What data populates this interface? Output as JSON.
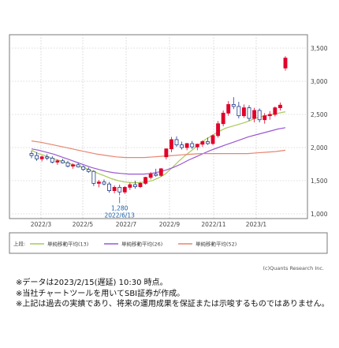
{
  "chart_data": {
    "type": "candlestick",
    "x_ticks": [
      "2022/3",
      "2022/5",
      "2022/7",
      "2022/9",
      "2022/11",
      "2023/1"
    ],
    "y_ticks": [
      "3,500",
      "3,000",
      "2,500",
      "2,000",
      "1,500",
      "1,000"
    ],
    "ylim": [
      1000,
      3500
    ],
    "grid": true,
    "candles": [
      [
        1910,
        1950,
        1840,
        1880
      ],
      [
        1880,
        1930,
        1800,
        1830
      ],
      [
        1830,
        1880,
        1790,
        1860
      ],
      [
        1860,
        1900,
        1810,
        1840
      ],
      [
        1840,
        1870,
        1760,
        1780
      ],
      [
        1780,
        1820,
        1740,
        1800
      ],
      [
        1800,
        1830,
        1760,
        1770
      ],
      [
        1770,
        1800,
        1700,
        1720
      ],
      [
        1720,
        1760,
        1680,
        1740
      ],
      [
        1740,
        1770,
        1700,
        1710
      ],
      [
        1710,
        1730,
        1650,
        1670
      ],
      [
        1670,
        1700,
        1620,
        1640
      ],
      [
        1640,
        1660,
        1420,
        1460
      ],
      [
        1460,
        1510,
        1400,
        1480
      ],
      [
        1480,
        1520,
        1430,
        1450
      ],
      [
        1450,
        1480,
        1320,
        1350
      ],
      [
        1350,
        1430,
        1310,
        1400
      ],
      [
        1400,
        1440,
        1280,
        1330
      ],
      [
        1330,
        1420,
        1300,
        1400
      ],
      [
        1400,
        1470,
        1360,
        1440
      ],
      [
        1440,
        1500,
        1380,
        1410
      ],
      [
        1410,
        1480,
        1390,
        1460
      ],
      [
        1460,
        1560,
        1440,
        1550
      ],
      [
        1550,
        1630,
        1520,
        1600
      ],
      [
        1600,
        1680,
        1560,
        1580
      ],
      [
        1580,
        1690,
        1560,
        1680
      ],
      [
        1860,
        1990,
        1820,
        1980
      ],
      [
        1980,
        2160,
        1930,
        2120
      ],
      [
        2120,
        2170,
        2010,
        2040
      ],
      [
        2040,
        2090,
        1970,
        2000
      ],
      [
        2000,
        2070,
        1960,
        2060
      ],
      [
        2060,
        2100,
        1980,
        2010
      ],
      [
        2010,
        2060,
        1960,
        2050
      ],
      [
        2050,
        2110,
        2010,
        2090
      ],
      [
        2090,
        2150,
        2040,
        2060
      ],
      [
        2060,
        2200,
        2040,
        2180
      ],
      [
        2180,
        2400,
        2150,
        2360
      ],
      [
        2360,
        2560,
        2320,
        2520
      ],
      [
        2520,
        2700,
        2480,
        2650
      ],
      [
        2650,
        2760,
        2580,
        2620
      ],
      [
        2620,
        2690,
        2440,
        2480
      ],
      [
        2480,
        2650,
        2450,
        2600
      ],
      [
        2600,
        2640,
        2400,
        2440
      ],
      [
        2440,
        2600,
        2380,
        2560
      ],
      [
        2560,
        2590,
        2380,
        2420
      ],
      [
        2420,
        2520,
        2360,
        2480
      ],
      [
        2480,
        2550,
        2420,
        2500
      ],
      [
        2500,
        2620,
        2470,
        2600
      ],
      [
        2600,
        2680,
        2560,
        2640
      ],
      [
        3200,
        3380,
        3160,
        3350
      ]
    ],
    "series": [
      {
        "name": "単純移動平均(13)",
        "color": "#a9c95a",
        "values": [
          1960,
          1910,
          1880,
          1840,
          1810,
          1780,
          1750,
          1720,
          1690,
          1650,
          1610,
          1570,
          1530,
          1500,
          1480,
          1470,
          1470,
          1480,
          1500,
          1540,
          1600,
          1690,
          1790,
          1880,
          1960,
          2040,
          2120,
          2180,
          2240,
          2290,
          2320,
          2350,
          2380,
          2420,
          2460,
          2480,
          2500,
          2520,
          2540
        ]
      },
      {
        "name": "単純移動平均(26)",
        "color": "#9b57d3",
        "values": [
          1980,
          1960,
          1930,
          1900,
          1860,
          1820,
          1780,
          1740,
          1700,
          1670,
          1640,
          1620,
          1610,
          1600,
          1600,
          1600,
          1610,
          1630,
          1660,
          1700,
          1750,
          1810,
          1860,
          1910,
          1960,
          2000,
          2040,
          2080,
          2120,
          2160,
          2190,
          2220,
          2250,
          2280,
          2300
        ]
      },
      {
        "name": "単純移動平均(52)",
        "color": "#e8856f",
        "values": [
          2100,
          2080,
          2050,
          2020,
          1990,
          1960,
          1930,
          1900,
          1880,
          1860,
          1850,
          1850,
          1850,
          1860,
          1870,
          1880,
          1890,
          1900,
          1910,
          1910,
          1910,
          1910,
          1910,
          1910,
          1920,
          1930,
          1940,
          1960
        ]
      }
    ],
    "annotation": {
      "lines": [
        "1,280",
        "2022/6/13"
      ],
      "value": 1280
    },
    "legend_label": "上段:",
    "credit": "(c)Quants Research Inc."
  },
  "notes": [
    "※データは2023/2/15(遅延) 10:30 時点。",
    "※当社チャートツールを用いてSBI証券が作成。",
    "※上記は過去の実績であり、将来の運用成果を保証または示唆するものではありません。"
  ],
  "colors": {
    "up": "#e0002a",
    "down": "#1e3a8a",
    "frame": "#7a7a7a",
    "annotation": "#1a5fa8"
  }
}
